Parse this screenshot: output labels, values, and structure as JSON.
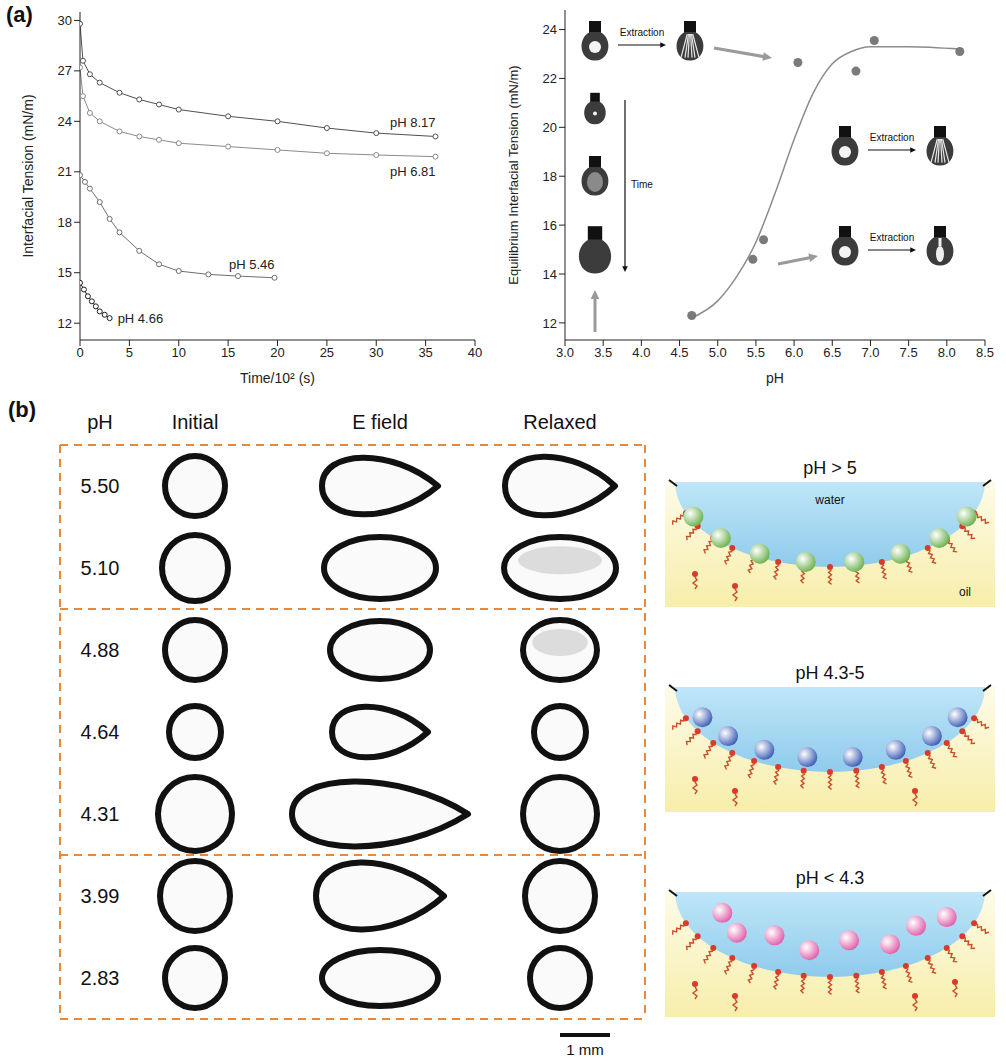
{
  "panel_labels": [
    "(a)",
    "(b)"
  ],
  "chart_data": [
    {
      "type": "line",
      "x_label": "Time/10² (s)",
      "y_label": "Interfacial Tension (mN/m)",
      "xlim": [
        0,
        40
      ],
      "xticks": [
        0,
        5,
        10,
        15,
        20,
        25,
        30,
        35,
        40
      ],
      "ylim": [
        11,
        30.5
      ],
      "yticks": [
        12,
        15,
        18,
        21,
        24,
        27,
        30
      ],
      "grid": false,
      "marker": "open circle",
      "line_style": "solid",
      "series": [
        {
          "name": "pH 8.17",
          "color": "#505050",
          "x": [
            0,
            0.3,
            1,
            2,
            4,
            6,
            8,
            10,
            15,
            20,
            25,
            30,
            36
          ],
          "values": [
            29.8,
            27.6,
            26.8,
            26.3,
            25.7,
            25.3,
            25.0,
            24.7,
            24.3,
            24.0,
            23.6,
            23.3,
            23.1
          ]
        },
        {
          "name": "pH 6.81",
          "color": "#8a8a8a",
          "x": [
            0,
            0.3,
            1,
            2,
            4,
            6,
            8,
            10,
            15,
            20,
            25,
            30,
            36
          ],
          "values": [
            27.2,
            25.5,
            24.5,
            24.0,
            23.4,
            23.1,
            22.9,
            22.7,
            22.5,
            22.3,
            22.1,
            22.0,
            21.9
          ]
        },
        {
          "name": "pH 5.46",
          "color": "#6e6e6e",
          "x": [
            0,
            0.5,
            1,
            2,
            3,
            4,
            6,
            8,
            10,
            13,
            16,
            19.7
          ],
          "values": [
            20.8,
            20.4,
            20.0,
            19.2,
            18.2,
            17.4,
            16.3,
            15.5,
            15.1,
            14.9,
            14.8,
            14.7
          ]
        },
        {
          "name": "pH 4.66",
          "color": "#1e1e1e",
          "x": [
            0,
            0.4,
            0.8,
            1.2,
            1.6,
            2.0,
            2.5,
            3.0
          ],
          "values": [
            14.4,
            14.0,
            13.6,
            13.3,
            13.0,
            12.7,
            12.5,
            12.3
          ]
        }
      ]
    },
    {
      "type": "scatter",
      "x_label": "pH",
      "y_label": "Equilibrium Interfacial Tension (mN/m)",
      "xlim": [
        3,
        8.5
      ],
      "xticks": [
        {
          "value": 3,
          "label": "3.0"
        },
        {
          "value": 3.5,
          "label": "3.5"
        },
        {
          "value": 4,
          "label": "4.0"
        },
        {
          "value": 4.5,
          "label": "4.5"
        },
        {
          "value": 5,
          "label": "5.0"
        },
        {
          "value": 5.5,
          "label": "5.5"
        },
        {
          "value": 6,
          "label": "6.0"
        },
        {
          "value": 6.5,
          "label": "6.5"
        },
        {
          "value": 7,
          "label": "7.0"
        },
        {
          "value": 7.5,
          "label": "7.5"
        },
        {
          "value": 8,
          "label": "8.0"
        },
        {
          "value": 8.5,
          "label": "8.5"
        }
      ],
      "ylim": [
        11.3,
        24.8
      ],
      "yticks": [
        12,
        14,
        16,
        18,
        20,
        22,
        24
      ],
      "grid": false,
      "annotations": [
        "Extraction",
        "Time",
        "Extraction",
        "Extraction"
      ],
      "series": [
        {
          "type": "scatter",
          "color": "#7a7a7a",
          "marker": "circle",
          "x": [
            4.66,
            5.46,
            5.6,
            6.05,
            6.81,
            7.05,
            8.17
          ],
          "values": [
            12.3,
            14.6,
            15.4,
            22.65,
            22.3,
            23.55,
            23.1
          ]
        },
        {
          "type": "line",
          "color": "#8c8c8c",
          "line_style": "solid",
          "x": [
            4.66,
            5.0,
            5.25,
            5.5,
            5.75,
            6.0,
            6.25,
            6.5,
            6.75,
            7.0,
            7.5,
            8.17
          ],
          "values": [
            12.2,
            12.9,
            13.9,
            15.3,
            17.3,
            19.5,
            21.4,
            22.6,
            23.1,
            23.3,
            23.3,
            23.2
          ]
        }
      ]
    }
  ],
  "panel_b": {
    "headers": [
      "pH",
      "Initial",
      "E field",
      "Relaxed"
    ],
    "groups": [
      {
        "rows": [
          "5.50",
          "5.10"
        ],
        "schematic": "pH > 5"
      },
      {
        "rows": [
          "4.88",
          "4.64",
          "4.31"
        ],
        "schematic": "pH 4.3-5"
      },
      {
        "rows": [
          "3.99",
          "2.83"
        ],
        "schematic": "pH < 4.3"
      }
    ],
    "phase_labels": [
      "water",
      "oil"
    ],
    "scale_bar": "1 mm"
  }
}
